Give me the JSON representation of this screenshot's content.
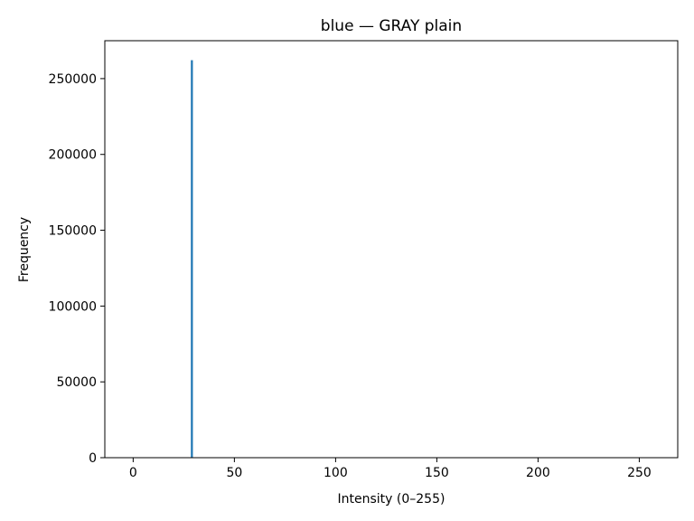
{
  "chart_data": {
    "type": "bar",
    "title": "blue — GRAY plain",
    "xlabel": "Intensity (0–255)",
    "ylabel": "Frequency",
    "xlim": [
      -14,
      269
    ],
    "ylim": [
      0,
      275000
    ],
    "xticks": [
      0,
      50,
      100,
      150,
      200,
      250
    ],
    "yticks": [
      0,
      50000,
      100000,
      150000,
      200000,
      250000
    ],
    "grid": false,
    "legend": "none",
    "bar_color": "#1f77b4",
    "bar_width": 1,
    "series": [
      {
        "x": [
          29
        ],
        "values": [
          262144
        ]
      }
    ]
  }
}
